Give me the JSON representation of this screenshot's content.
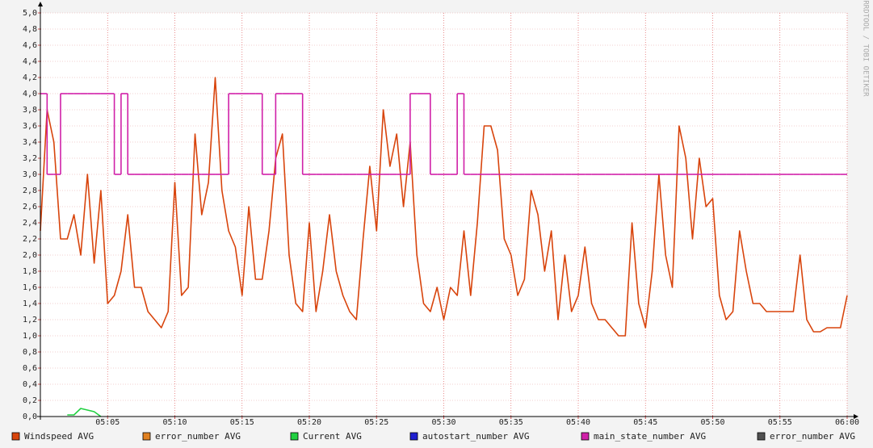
{
  "chart_data": {
    "type": "line",
    "watermark": "RRDTOOL / TOBI OETIKER",
    "x": [
      "05:00:00",
      "05:00:30",
      "05:01:00",
      "05:01:30",
      "05:02:00",
      "05:02:30",
      "05:03:00",
      "05:03:30",
      "05:04:00",
      "05:04:30",
      "05:05:00",
      "05:05:30",
      "05:06:00",
      "05:06:30",
      "05:07:00",
      "05:07:30",
      "05:08:00",
      "05:08:30",
      "05:09:00",
      "05:09:30",
      "05:10:00",
      "05:10:30",
      "05:11:00",
      "05:11:30",
      "05:12:00",
      "05:12:30",
      "05:13:00",
      "05:13:30",
      "05:14:00",
      "05:14:30",
      "05:15:00",
      "05:15:30",
      "05:16:00",
      "05:16:30",
      "05:17:00",
      "05:17:30",
      "05:18:00",
      "05:18:30",
      "05:19:00",
      "05:19:30",
      "05:20:00",
      "05:20:30",
      "05:21:00",
      "05:21:30",
      "05:22:00",
      "05:22:30",
      "05:23:00",
      "05:23:30",
      "05:24:00",
      "05:24:30",
      "05:25:00",
      "05:25:30",
      "05:26:00",
      "05:26:30",
      "05:27:00",
      "05:27:30",
      "05:28:00",
      "05:28:30",
      "05:29:00",
      "05:29:30",
      "05:30:00",
      "05:30:30",
      "05:31:00",
      "05:31:30",
      "05:32:00",
      "05:32:30",
      "05:33:00",
      "05:33:30",
      "05:34:00",
      "05:34:30",
      "05:35:00",
      "05:35:30",
      "05:36:00",
      "05:36:30",
      "05:37:00",
      "05:37:30",
      "05:38:00",
      "05:38:30",
      "05:39:00",
      "05:39:30",
      "05:40:00",
      "05:40:30",
      "05:41:00",
      "05:41:30",
      "05:42:00",
      "05:42:30",
      "05:43:00",
      "05:43:30",
      "05:44:00",
      "05:44:30",
      "05:45:00",
      "05:45:30",
      "05:46:00",
      "05:46:30",
      "05:47:00",
      "05:47:30",
      "05:48:00",
      "05:48:30",
      "05:49:00",
      "05:49:30",
      "05:50:00",
      "05:50:30",
      "05:51:00",
      "05:51:30",
      "05:52:00",
      "05:52:30",
      "05:53:00",
      "05:53:30",
      "05:54:00",
      "05:54:30",
      "05:55:00",
      "05:55:30",
      "05:56:00",
      "05:56:30",
      "05:57:00",
      "05:57:30",
      "05:58:00",
      "05:58:30",
      "05:59:00",
      "05:59:30",
      "06:00:00"
    ],
    "series": [
      {
        "name": "Windspeed AVG",
        "color": "#d8440c",
        "values": [
          2.3,
          3.8,
          3.4,
          2.2,
          2.2,
          2.5,
          2.0,
          3.0,
          1.9,
          2.8,
          1.4,
          1.5,
          1.8,
          2.5,
          1.6,
          1.6,
          1.3,
          1.2,
          1.1,
          1.3,
          2.9,
          1.5,
          1.6,
          3.5,
          2.5,
          2.9,
          4.2,
          2.8,
          2.3,
          2.1,
          1.5,
          2.6,
          1.7,
          1.7,
          2.3,
          3.2,
          3.5,
          2.0,
          1.4,
          1.3,
          2.4,
          1.3,
          1.8,
          2.5,
          1.8,
          1.5,
          1.3,
          1.2,
          2.2,
          3.1,
          2.3,
          3.8,
          3.1,
          3.5,
          2.6,
          3.4,
          2.0,
          1.4,
          1.3,
          1.6,
          1.2,
          1.6,
          1.5,
          2.3,
          1.5,
          2.4,
          3.6,
          3.6,
          3.3,
          2.2,
          2.0,
          1.5,
          1.7,
          2.8,
          2.5,
          1.8,
          2.3,
          1.2,
          2.0,
          1.3,
          1.5,
          2.1,
          1.4,
          1.2,
          1.2,
          1.1,
          1.0,
          1.0,
          2.4,
          1.4,
          1.1,
          1.8,
          3.0,
          2.0,
          1.6,
          3.6,
          3.2,
          2.2,
          3.2,
          2.6,
          2.7,
          1.5,
          1.2,
          1.3,
          2.3,
          1.8,
          1.4,
          1.4,
          1.3,
          1.3,
          1.3,
          1.3,
          1.3,
          2.0,
          1.2,
          1.05,
          1.05,
          1.1,
          1.1,
          1.1,
          1.5
        ]
      },
      {
        "name": "error_number AVG",
        "color": "#e08020",
        "values": [
          null,
          null,
          null,
          null,
          null,
          null,
          null,
          null,
          null,
          null,
          null,
          null,
          null,
          null,
          null,
          null,
          null,
          null,
          null,
          null,
          null,
          null,
          null,
          null,
          null,
          null,
          null,
          null,
          null,
          null,
          null,
          null,
          null,
          null,
          null,
          null,
          null,
          null,
          null,
          null,
          null,
          null,
          null,
          null,
          null,
          null,
          null,
          null,
          null,
          null,
          null,
          null,
          null,
          null,
          null,
          null,
          null,
          null,
          null,
          null,
          null,
          null,
          null,
          null,
          null,
          null,
          null,
          null,
          null,
          null,
          null,
          null,
          null,
          null,
          null,
          null,
          null,
          null,
          null,
          null,
          null,
          null,
          null,
          null,
          null,
          null,
          null,
          null,
          null,
          null,
          null,
          null,
          null,
          null,
          null,
          null,
          null,
          null,
          null,
          null,
          null,
          null,
          null,
          null,
          null,
          null,
          null,
          null,
          null,
          null,
          null,
          null,
          null,
          null,
          null,
          null,
          null,
          null,
          null,
          null,
          null
        ]
      },
      {
        "name": "Current AVG",
        "color": "#20d040",
        "values": [
          null,
          null,
          null,
          null,
          0.02,
          0.02,
          0.1,
          0.08,
          0.06,
          0.0,
          null,
          null,
          null,
          null,
          null,
          null,
          null,
          null,
          null,
          null,
          null,
          null,
          null,
          null,
          null,
          null,
          null,
          null,
          null,
          null,
          null,
          null,
          null,
          null,
          null,
          null,
          null,
          null,
          null,
          null,
          null,
          null,
          null,
          null,
          null,
          null,
          null,
          null,
          null,
          null,
          null,
          null,
          null,
          null,
          null,
          null,
          null,
          null,
          null,
          null,
          null,
          null,
          null,
          null,
          null,
          null,
          null,
          null,
          null,
          null,
          null,
          null,
          null,
          null,
          null,
          null,
          null,
          null,
          null,
          null,
          null,
          null,
          null,
          null,
          null,
          null,
          null,
          null,
          null,
          null,
          null,
          null,
          null,
          null,
          null,
          null,
          null,
          null,
          null,
          null,
          null,
          null,
          null,
          null,
          null,
          null,
          null,
          null,
          null,
          null,
          null,
          null,
          null,
          null,
          null,
          null,
          null,
          null,
          null,
          null,
          null
        ]
      },
      {
        "name": "autostart_number AVG",
        "color": "#2020d0",
        "values": [
          null,
          null,
          null,
          null,
          null,
          null,
          null,
          null,
          null,
          null,
          null,
          null,
          null,
          null,
          null,
          null,
          null,
          null,
          null,
          null,
          null,
          null,
          null,
          null,
          null,
          null,
          null,
          null,
          null,
          null,
          null,
          null,
          null,
          null,
          null,
          null,
          null,
          null,
          null,
          null,
          null,
          null,
          null,
          null,
          null,
          null,
          null,
          null,
          null,
          null,
          null,
          null,
          null,
          null,
          null,
          null,
          null,
          null,
          null,
          null,
          null,
          null,
          null,
          null,
          null,
          null,
          null,
          null,
          null,
          null,
          null,
          null,
          null,
          null,
          null,
          null,
          null,
          null,
          null,
          null,
          null,
          null,
          null,
          null,
          null,
          null,
          null,
          null,
          null,
          null,
          null,
          null,
          null,
          null,
          null,
          null,
          null,
          null,
          null,
          null,
          null,
          null,
          null,
          null,
          null,
          null,
          null,
          null,
          null,
          null,
          null,
          null,
          null,
          null,
          null,
          null,
          null,
          null,
          null,
          null,
          null
        ]
      },
      {
        "name": "main_state_number AVG",
        "color": "#d020a8",
        "step": true,
        "values": [
          4,
          3,
          3,
          4,
          4,
          4,
          4,
          4,
          4,
          4,
          4,
          3,
          4,
          3,
          3,
          3,
          3,
          3,
          3,
          3,
          3,
          3,
          3,
          3,
          3,
          3,
          3,
          3,
          4,
          4,
          4,
          4,
          4,
          3,
          3,
          4,
          4,
          4,
          4,
          3,
          3,
          3,
          3,
          3,
          3,
          3,
          3,
          3,
          3,
          3,
          3,
          3,
          3,
          3,
          3,
          4,
          4,
          4,
          3,
          3,
          3,
          3,
          4,
          3,
          3,
          3,
          3,
          3,
          3,
          3,
          3,
          3,
          3,
          3,
          3,
          3,
          3,
          3,
          3,
          3,
          3,
          3,
          3,
          3,
          3,
          3,
          3,
          3,
          3,
          3,
          3,
          3,
          3,
          3,
          3,
          3,
          3,
          3,
          3,
          3,
          3,
          3,
          3,
          3,
          3,
          3,
          3,
          3,
          3,
          3,
          3,
          3,
          3,
          3,
          3,
          3,
          3,
          3,
          3,
          3,
          3
        ]
      },
      {
        "name": "error_number AVG",
        "color": "#505050",
        "values": [
          null,
          null,
          null,
          null,
          null,
          null,
          null,
          null,
          null,
          null,
          null,
          null,
          null,
          null,
          null,
          null,
          null,
          null,
          null,
          null,
          null,
          null,
          null,
          null,
          null,
          null,
          null,
          null,
          null,
          null,
          null,
          null,
          null,
          null,
          null,
          null,
          null,
          null,
          null,
          null,
          null,
          null,
          null,
          null,
          null,
          null,
          null,
          null,
          null,
          null,
          null,
          null,
          null,
          null,
          null,
          null,
          null,
          null,
          null,
          null,
          null,
          null,
          null,
          null,
          null,
          null,
          null,
          null,
          null,
          null,
          null,
          null,
          null,
          null,
          null,
          null,
          null,
          null,
          null,
          null,
          null,
          null,
          null,
          null,
          null,
          null,
          null,
          null,
          null,
          null,
          null,
          null,
          null,
          null,
          null,
          null,
          null,
          null,
          null,
          null,
          null,
          null,
          null,
          null,
          null,
          null,
          null,
          null,
          null,
          null,
          null,
          null,
          null,
          null,
          null,
          null,
          null,
          null,
          null,
          null,
          null
        ]
      }
    ],
    "xlim": [
      "05:00",
      "06:00"
    ],
    "xticks": [
      "05:05",
      "05:10",
      "05:15",
      "05:20",
      "05:25",
      "05:30",
      "05:35",
      "05:40",
      "05:45",
      "05:50",
      "05:55",
      "06:00"
    ],
    "ylim": [
      0,
      5
    ],
    "yticks": [
      {
        "value": 0,
        "label": "0,0"
      },
      {
        "value": 0.2,
        "label": "0,2"
      },
      {
        "value": 0.4,
        "label": "0,4"
      },
      {
        "value": 0.6,
        "label": "0,6"
      },
      {
        "value": 0.8,
        "label": "0,8"
      },
      {
        "value": 1,
        "label": "1,0"
      },
      {
        "value": 1.2,
        "label": "1,2"
      },
      {
        "value": 1.4,
        "label": "1,4"
      },
      {
        "value": 1.6,
        "label": "1,6"
      },
      {
        "value": 1.8,
        "label": "1,8"
      },
      {
        "value": 2,
        "label": "2,0"
      },
      {
        "value": 2.2,
        "label": "2,2"
      },
      {
        "value": 2.4,
        "label": "2,4"
      },
      {
        "value": 2.6,
        "label": "2,6"
      },
      {
        "value": 2.8,
        "label": "2,8"
      },
      {
        "value": 3,
        "label": "3,0"
      },
      {
        "value": 3.2,
        "label": "3,2"
      },
      {
        "value": 3.4,
        "label": "3,4"
      },
      {
        "value": 3.6,
        "label": "3,6"
      },
      {
        "value": 3.8,
        "label": "3,8"
      },
      {
        "value": 4,
        "label": "4,0"
      },
      {
        "value": 4.2,
        "label": "4,2"
      },
      {
        "value": 4.4,
        "label": "4,4"
      },
      {
        "value": 4.6,
        "label": "4,6"
      },
      {
        "value": 4.8,
        "label": "4,8"
      },
      {
        "value": 5,
        "label": "5,0"
      }
    ],
    "grid": true,
    "legend": "bottom"
  }
}
